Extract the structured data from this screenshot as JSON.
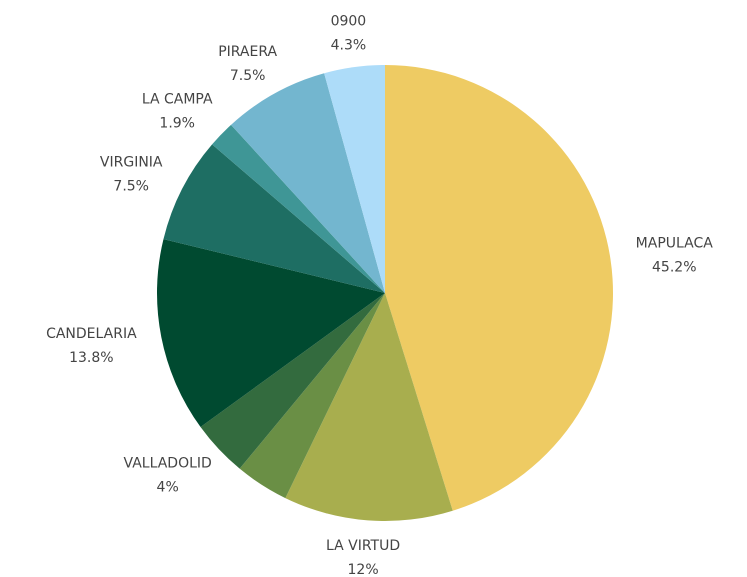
{
  "chart_data": {
    "type": "pie",
    "categories": [
      "MAPULACA",
      "LA VIRTUD",
      null,
      "VALLADOLID",
      "CANDELARIA",
      "VIRGINIA",
      "LA CAMPA",
      "PIRAERA",
      "0900"
    ],
    "values": [
      45.2,
      12,
      3.8,
      4,
      13.8,
      7.5,
      1.9,
      7.5,
      4.3
    ],
    "value_labels": [
      "45.2%",
      "12%",
      null,
      "4%",
      "13.8%",
      "7.5%",
      "1.9%",
      "7.5%",
      "4.3%"
    ],
    "colors": [
      "#eecb63",
      "#a8ae4e",
      "#6a8f45",
      "#336b3e",
      "#004a30",
      "#1e6e63",
      "#3f9696",
      "#73b6cf",
      "#addcf9"
    ]
  }
}
